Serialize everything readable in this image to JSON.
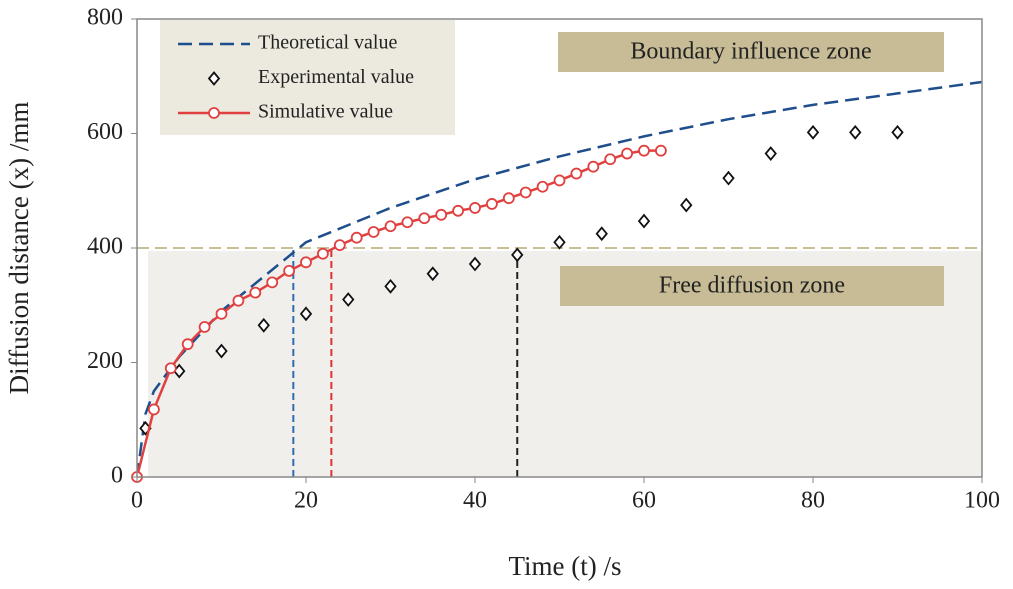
{
  "chart_data": {
    "type": "line",
    "xlabel": "Time (t) /s",
    "ylabel": "Diffusion distance (x) /mm",
    "xlim": [
      0,
      100
    ],
    "ylim": [
      0,
      800
    ],
    "xticks": [
      0,
      20,
      40,
      60,
      80,
      100
    ],
    "yticks": [
      0,
      200,
      400,
      600,
      800
    ],
    "series": [
      {
        "name": "Theoretical value",
        "color": "#1f4e8c",
        "style": "dashed",
        "x": [
          0,
          1,
          2,
          5,
          10,
          20,
          30,
          40,
          50,
          60,
          70,
          80,
          90,
          100
        ],
        "values": [
          0,
          110,
          150,
          210,
          290,
          410,
          470,
          520,
          560,
          595,
          625,
          650,
          670,
          690
        ]
      },
      {
        "name": "Experimental value",
        "color": "#111111",
        "style": "diamond",
        "x": [
          1,
          5,
          10,
          15,
          20,
          25,
          30,
          35,
          40,
          45,
          50,
          55,
          60,
          65,
          70,
          75,
          80,
          85,
          90
        ],
        "values": [
          85,
          185,
          220,
          265,
          285,
          310,
          333,
          355,
          372,
          388,
          410,
          425,
          447,
          475,
          522,
          565,
          602,
          602,
          602
        ]
      },
      {
        "name": "Simulative value",
        "color": "#e0403f",
        "style": "line-circle",
        "x": [
          0,
          2,
          4,
          6,
          8,
          10,
          12,
          14,
          16,
          18,
          20,
          22,
          24,
          26,
          28,
          30,
          32,
          34,
          36,
          38,
          40,
          42,
          44,
          46,
          48,
          50,
          52,
          54,
          56,
          58,
          60,
          62
        ],
        "values": [
          0,
          118,
          190,
          232,
          262,
          285,
          308,
          322,
          340,
          360,
          375,
          390,
          405,
          418,
          428,
          438,
          445,
          452,
          458,
          465,
          470,
          477,
          487,
          497,
          507,
          518,
          530,
          542,
          555,
          565,
          570,
          570
        ]
      }
    ],
    "boundary_y": 400,
    "markers_x": [
      {
        "value": 18.5,
        "color": "#2e6db4"
      },
      {
        "value": 23,
        "color": "#e0332f"
      },
      {
        "value": 45,
        "color": "#222222"
      }
    ],
    "annotations": [
      "Boundary influence zone",
      "Free diffusion zone"
    ]
  }
}
